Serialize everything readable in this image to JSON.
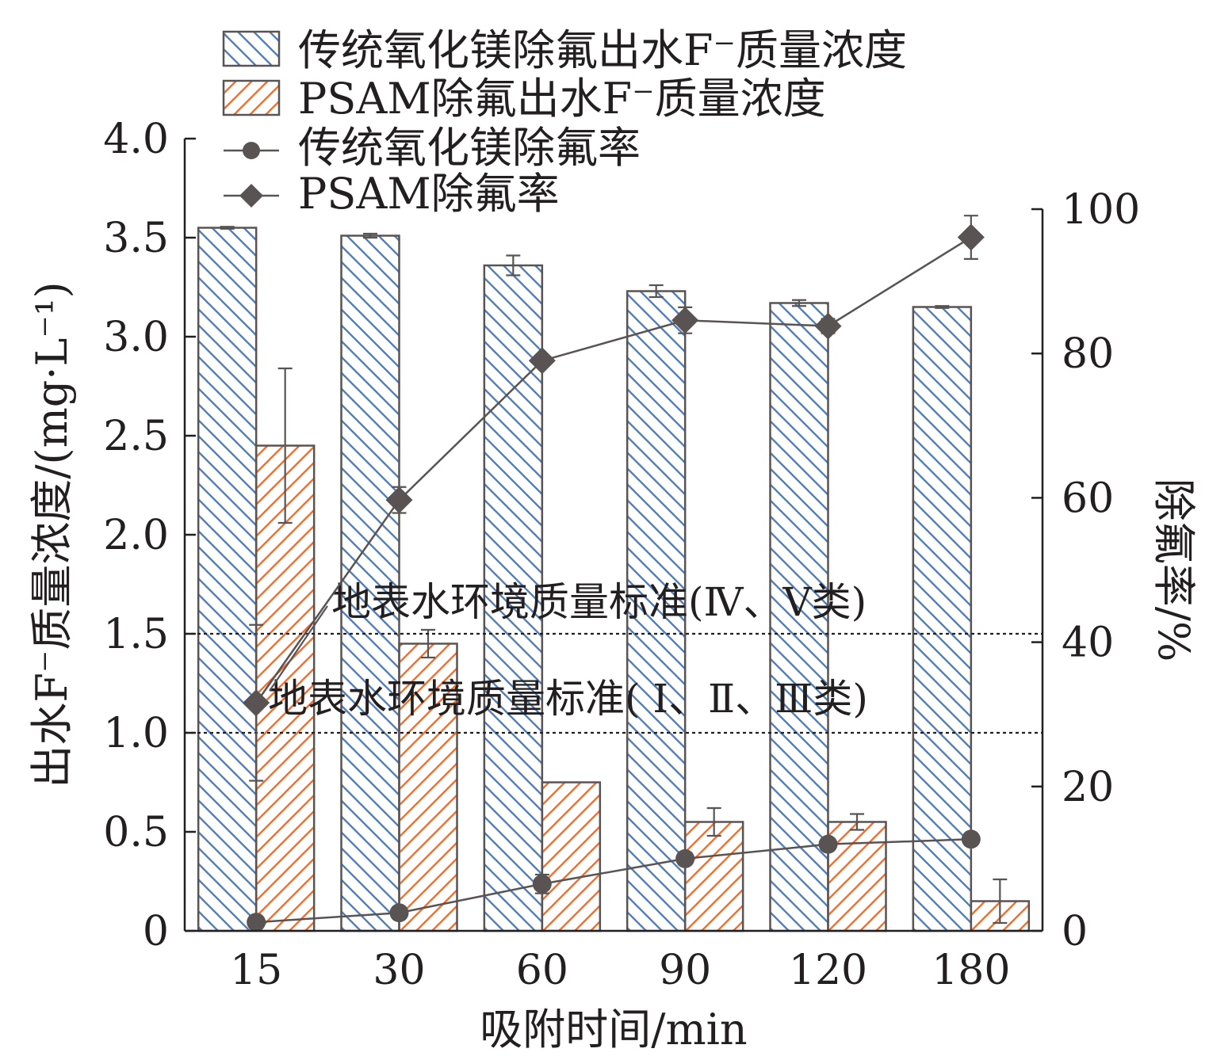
{
  "chart_data": {
    "type": "bar",
    "categories": [
      "15",
      "30",
      "60",
      "90",
      "120",
      "180"
    ],
    "xlabel": "吸附时间/min",
    "ylabel": "出水F⁻质量浓度/(mg·L⁻¹)",
    "y2label": "除氟率/%",
    "ylim": [
      0,
      4.0
    ],
    "y2lim": [
      0,
      100
    ],
    "yticks": [
      "0",
      "0.5",
      "1.0",
      "1.5",
      "2.0",
      "2.5",
      "3.0",
      "3.5",
      "4.0"
    ],
    "y2ticks": [
      "0",
      "20",
      "40",
      "60",
      "80",
      "100"
    ],
    "series": [
      {
        "name": "传统氧化镁除氟出水F⁻质量浓度",
        "kind": "bar",
        "axis": "left",
        "color": "#4f81bd",
        "hatch": "backslash",
        "values": [
          3.55,
          3.51,
          3.36,
          3.23,
          3.17,
          3.15
        ],
        "errors": [
          0.005,
          0.01,
          0.05,
          0.03,
          0.015,
          0.005
        ]
      },
      {
        "name": "PSAM除氟出水F⁻质量浓度",
        "kind": "bar",
        "axis": "left",
        "color": "#e8743b",
        "hatch": "slash",
        "values": [
          2.45,
          1.45,
          0.75,
          0.55,
          0.55,
          0.15
        ],
        "errors": [
          0.39,
          0.07,
          0.0,
          0.07,
          0.04,
          0.11
        ]
      },
      {
        "name": "传统氧化镁除氟率",
        "kind": "line",
        "marker": "circle",
        "axis": "right",
        "color": "#595353",
        "values": [
          1.2,
          2.5,
          6.5,
          10.0,
          12.0,
          12.7
        ],
        "errors": [
          0.3,
          0.5,
          1.3,
          0.8,
          0.6,
          0.4
        ]
      },
      {
        "name": "PSAM除氟率",
        "kind": "line",
        "marker": "diamond",
        "axis": "right",
        "color": "#595353",
        "values": [
          31.6,
          59.7,
          79.0,
          84.6,
          83.8,
          96.1
        ],
        "errors": [
          10.8,
          1.8,
          0.0,
          1.8,
          1.0,
          3.0
        ]
      }
    ],
    "reference_lines": [
      {
        "value": 1.5,
        "label": "地表水环境质量标准(Ⅳ、Ⅴ类)"
      },
      {
        "value": 1.0,
        "label": "地表水环境质量标准( Ⅰ、Ⅱ、Ⅲ类)"
      }
    ],
    "legend_position": "top-left",
    "grid": false
  }
}
